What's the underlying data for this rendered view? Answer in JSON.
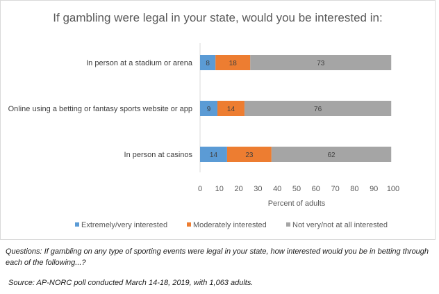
{
  "chart_data": {
    "type": "bar",
    "orientation": "horizontal",
    "stacked": true,
    "title": "If gambling were legal in your state, would you be interested in:",
    "categories": [
      "In person at a stadium or arena",
      "Online using a betting or fantasy sports website or app",
      "In person at casinos"
    ],
    "series": [
      {
        "name": "Extremely/very interested",
        "color": "#5b9bd5",
        "values": [
          8,
          9,
          14
        ]
      },
      {
        "name": "Moderately interested",
        "color": "#ed7d31",
        "values": [
          18,
          14,
          23
        ]
      },
      {
        "name": "Not very/not at all interested",
        "color": "#a5a5a5",
        "values": [
          73,
          76,
          62
        ]
      }
    ],
    "xlabel": "Percent of adults",
    "ylabel": "",
    "xlim": [
      0,
      100
    ],
    "xticks": [
      0,
      10,
      20,
      30,
      40,
      50,
      60,
      70,
      80,
      90,
      100
    ],
    "grid": false,
    "legend": "bottom"
  },
  "notes": {
    "question": "Questions: If gambling on any type of sporting events were legal in your state, how interested would you be in betting through each of the following...?",
    "source": "Source: AP-NORC poll conducted March 14-18, 2019, with 1,063 adults."
  }
}
